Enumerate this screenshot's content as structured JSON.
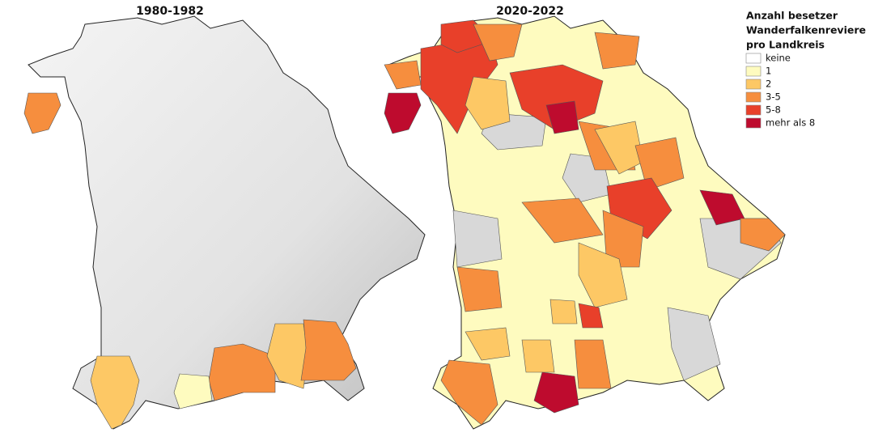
{
  "maps": [
    {
      "title": "1980-1982"
    },
    {
      "title": "2020-2022"
    }
  ],
  "legend": {
    "title_lines": [
      "Anzahl besetzer",
      "Wanderfalkenreviere",
      "pro Landkreis"
    ],
    "items": [
      {
        "label": "keine",
        "color": "#ffffff"
      },
      {
        "label": "1",
        "color": "#fefbbf"
      },
      {
        "label": "2",
        "color": "#fdc865"
      },
      {
        "label": "3-5",
        "color": "#f68e3e"
      },
      {
        "label": "5-8",
        "color": "#e8402a"
      },
      {
        "label": "mehr als 8",
        "color": "#be0b2e"
      }
    ]
  }
}
